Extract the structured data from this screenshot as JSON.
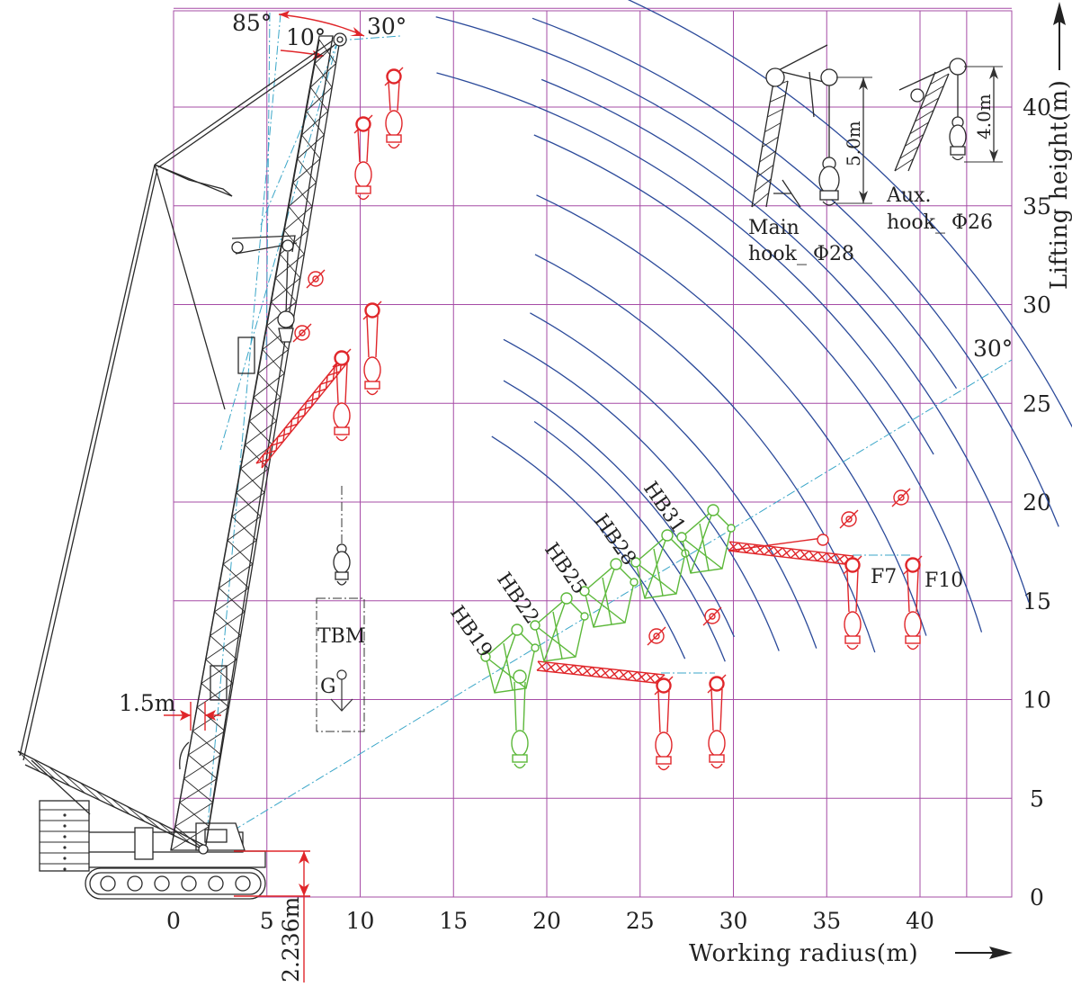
{
  "axes": {
    "x_title": "Working radius(m)",
    "y_title": "Lifting height(m)",
    "x_ticks": [
      0,
      5,
      10,
      15,
      20,
      25,
      30,
      35,
      40
    ],
    "y_ticks": [
      0,
      5,
      10,
      15,
      20,
      25,
      30,
      35,
      40
    ]
  },
  "angles": {
    "max_boom": "85°",
    "jib_offset_min": "10°",
    "jib_offset_max": "30°",
    "right_angle": "30°"
  },
  "dimensions": {
    "offset_1": "1.5m",
    "pivot_height": "2.236m"
  },
  "tbm": {
    "label": "TBM",
    "cg": "G"
  },
  "boom_labels": [
    "HB19",
    "HB22",
    "HB25",
    "HB28",
    "HB31"
  ],
  "jib_labels": [
    "F7",
    "F10"
  ],
  "insets": {
    "main_hook": {
      "line1": "Main",
      "line2": "hook_ Φ28",
      "height": "5.0m"
    },
    "aux_hook": {
      "line1": "Aux.",
      "line2": "hook_ Φ26",
      "height": "4.0m"
    }
  },
  "colors": {
    "grid": "#a64ca6",
    "arcs": "#2b4a9a",
    "jib": "#e0262a",
    "boom_tip": "#5cb83a",
    "centerline": "#3aa6c8"
  }
}
